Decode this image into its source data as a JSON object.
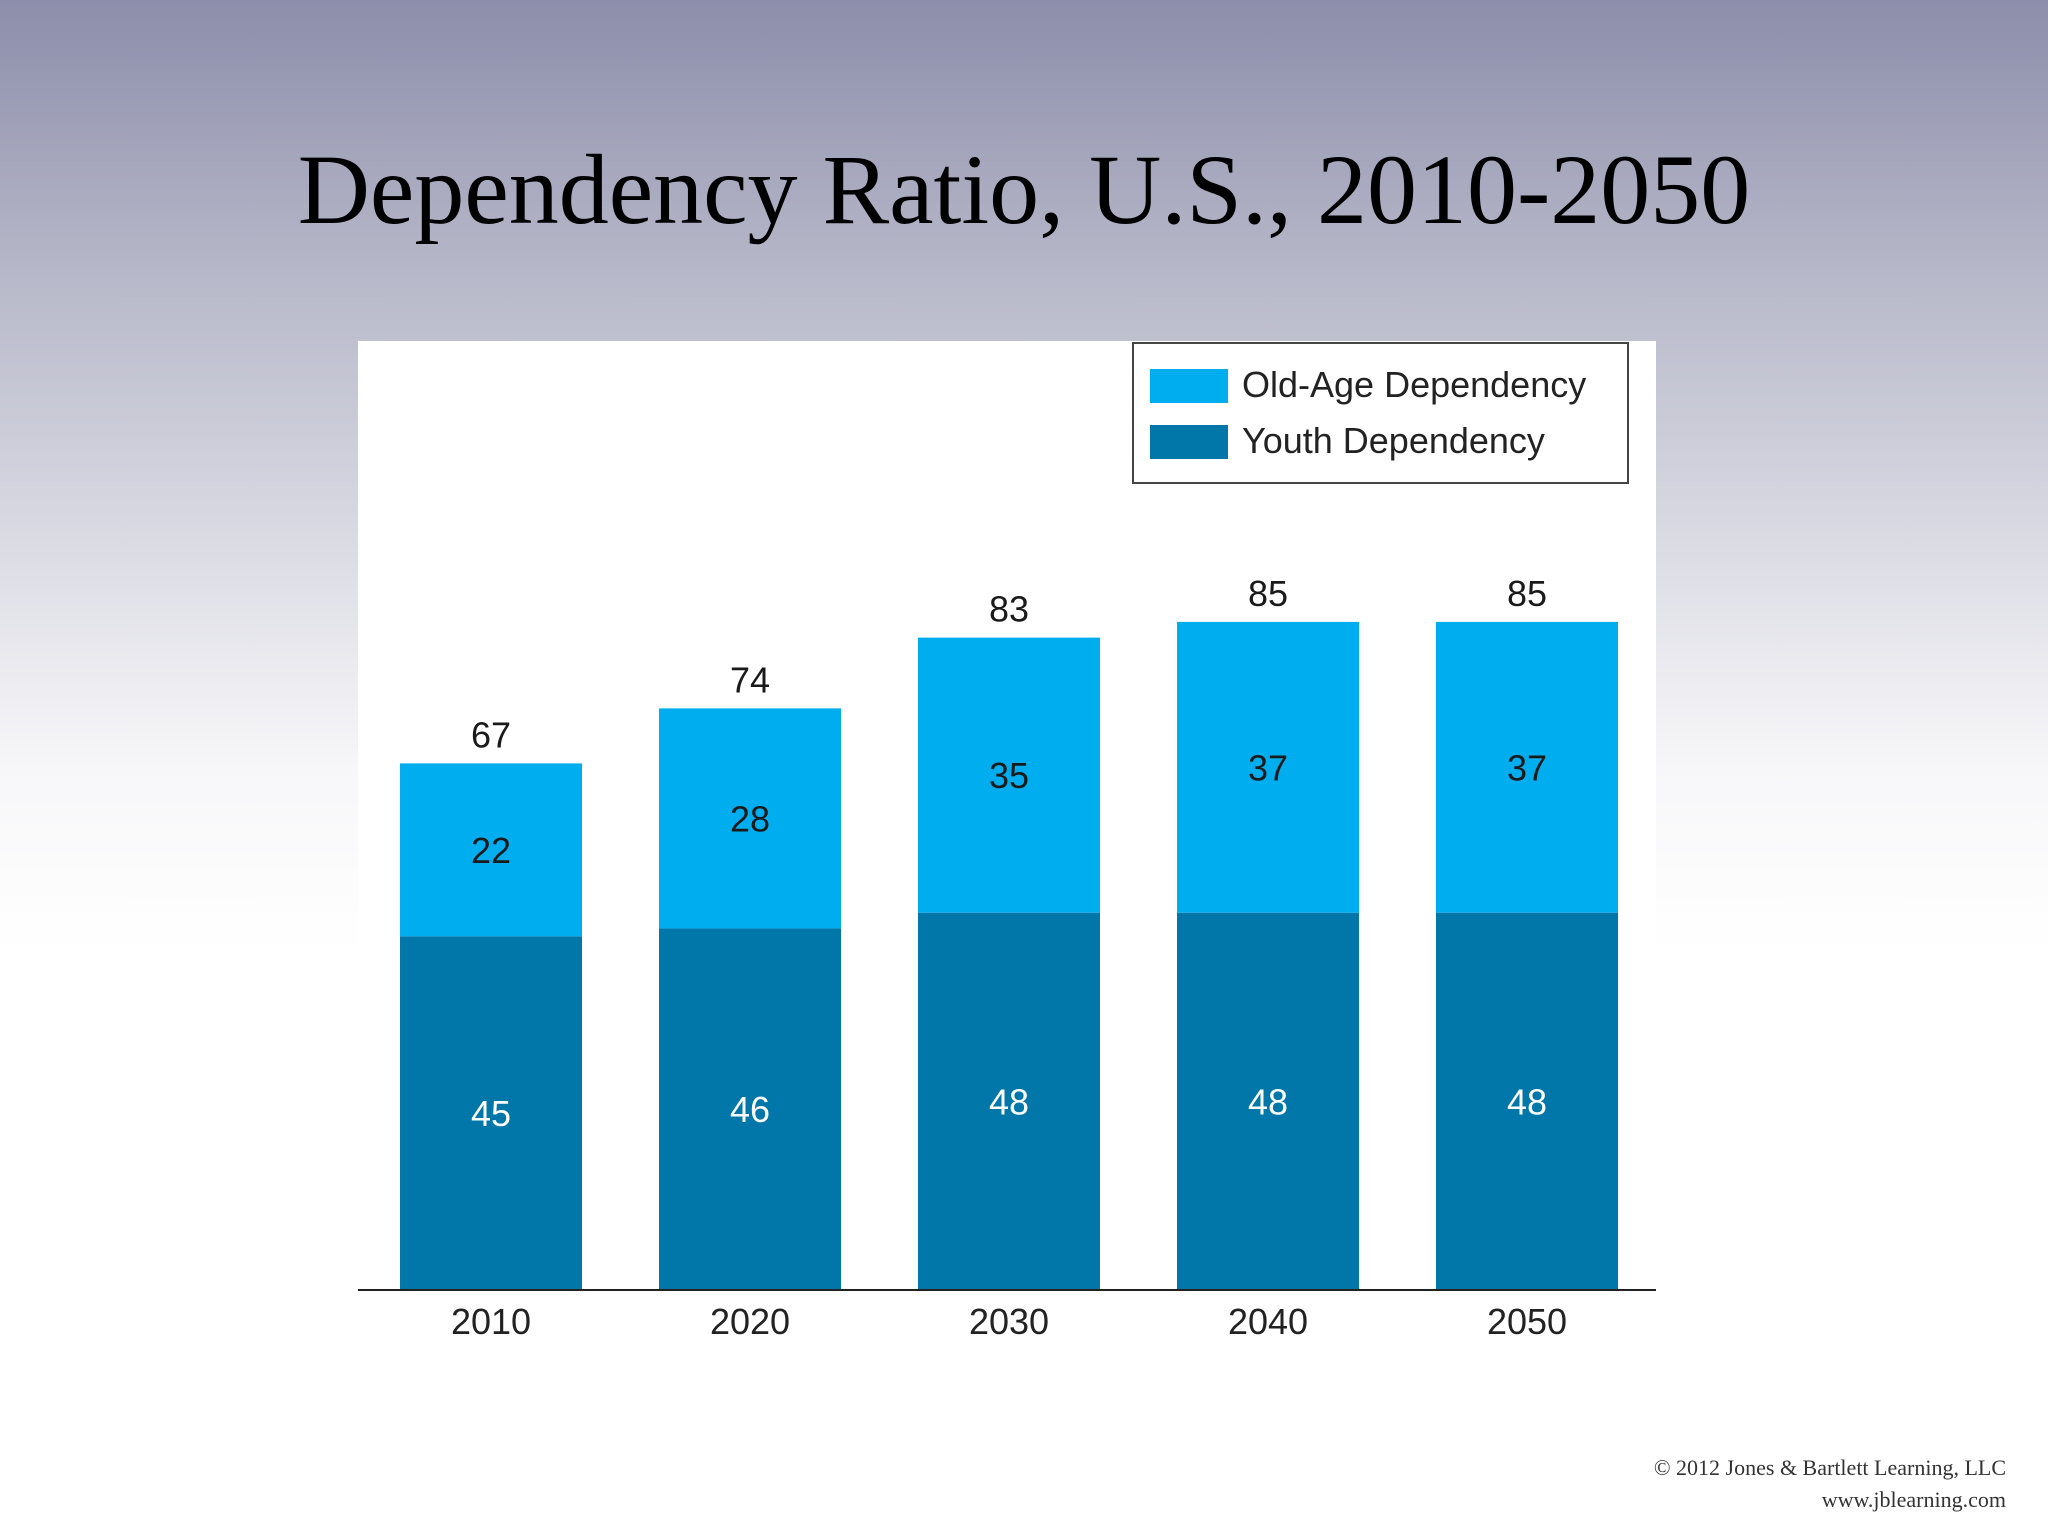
{
  "slide": {
    "title": "Dependency Ratio, U.S., 2010-2050",
    "copyright": "© 2012 Jones & Bartlett Learning, LLC",
    "website": "www.jblearning.com"
  },
  "chart_data": {
    "type": "bar",
    "stacked": true,
    "categories": [
      "2010",
      "2020",
      "2030",
      "2040",
      "2050"
    ],
    "series": [
      {
        "name": "Youth Dependency",
        "values": [
          45,
          46,
          48,
          48,
          48
        ],
        "color": "#0077a8"
      },
      {
        "name": "Old-Age Dependency",
        "values": [
          22,
          28,
          35,
          37,
          37
        ],
        "color": "#00aeef"
      }
    ],
    "totals": [
      67,
      74,
      83,
      85,
      85
    ],
    "legend_order": [
      "Old-Age Dependency",
      "Youth Dependency"
    ],
    "legend_position": "top-right",
    "title": "",
    "xlabel": "",
    "ylabel": "",
    "ylim": [
      0,
      100
    ],
    "grid": false,
    "colors": {
      "segment_label": "#1a1a1a",
      "base_label": "#ffffff",
      "total_label": "#1a1a1a",
      "axis": "#222222"
    }
  }
}
